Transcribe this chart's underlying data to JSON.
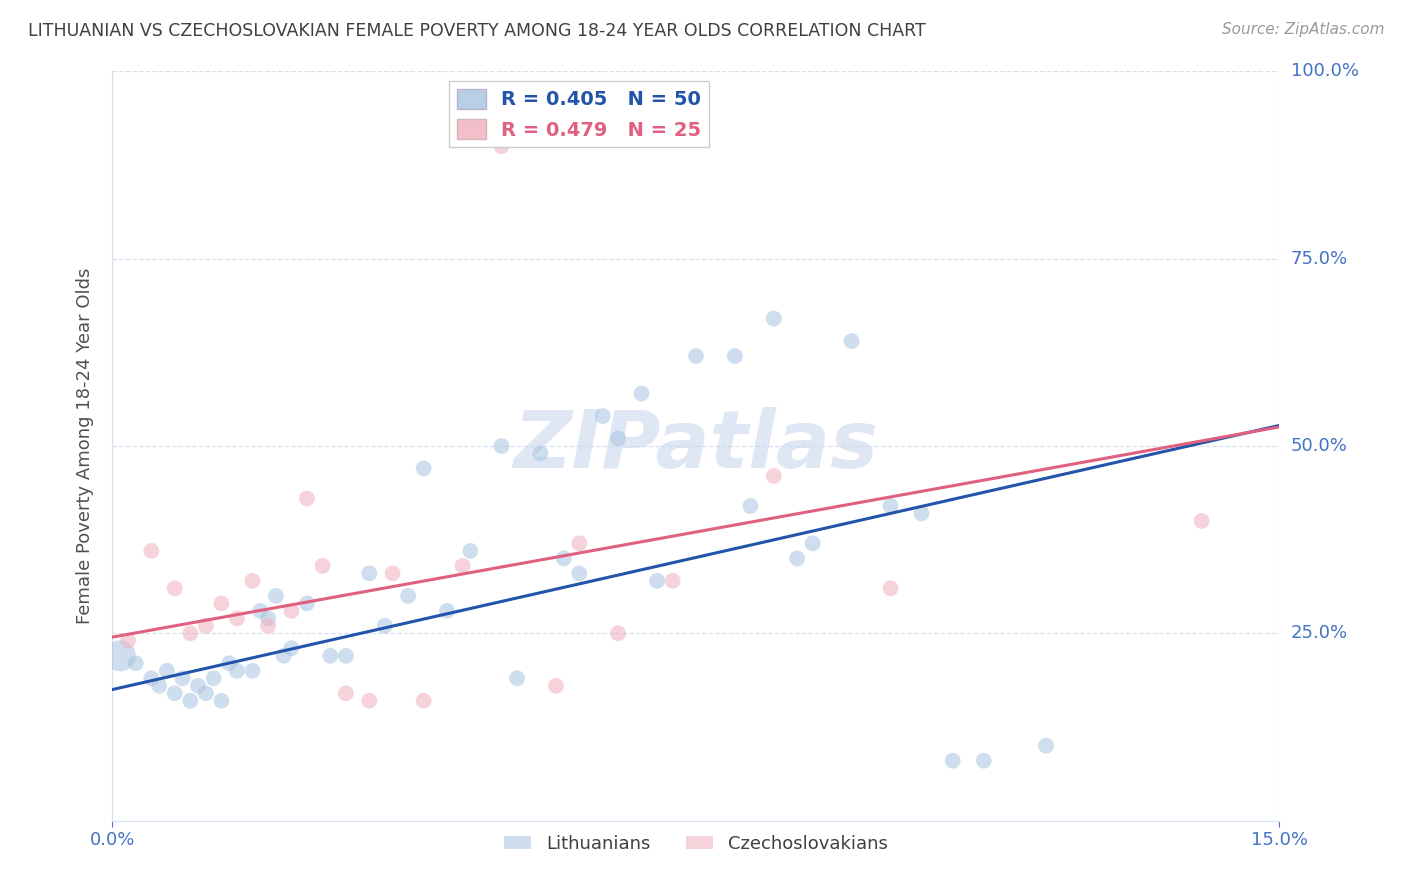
{
  "title": "LITHUANIAN VS CZECHOSLOVAKIAN FEMALE POVERTY AMONG 18-24 YEAR OLDS CORRELATION CHART",
  "source": "Source: ZipAtlas.com",
  "ylabel": "Female Poverty Among 18-24 Year Olds",
  "xlim": [
    0.0,
    0.15
  ],
  "ylim": [
    0.0,
    1.0
  ],
  "xticks": [
    0.0,
    0.15
  ],
  "yticks": [
    0.25,
    0.5,
    0.75,
    1.0
  ],
  "blue_color": "#a8c4e0",
  "pink_color": "#f0b0be",
  "blue_line_color": "#2255aa",
  "pink_line_color": "#e06080",
  "blue_text_color": "#2255aa",
  "pink_text_color": "#e06080",
  "title_color": "#404040",
  "axis_label_color": "#505050",
  "tick_color": "#4472c4",
  "grid_color": "#d8dff0",
  "watermark_color": "#c8d8ec",
  "scatter_alpha": 0.55,
  "scatter_size": 130,
  "first_point_size": 500,
  "trend_linewidth": 2.2,
  "lit_x": [
    0.001,
    0.003,
    0.005,
    0.006,
    0.007,
    0.008,
    0.009,
    0.01,
    0.011,
    0.012,
    0.013,
    0.014,
    0.015,
    0.016,
    0.018,
    0.019,
    0.02,
    0.021,
    0.022,
    0.023,
    0.025,
    0.028,
    0.03,
    0.033,
    0.035,
    0.038,
    0.04,
    0.043,
    0.046,
    0.05,
    0.052,
    0.055,
    0.058,
    0.06,
    0.063,
    0.065,
    0.068,
    0.07,
    0.075,
    0.08,
    0.082,
    0.085,
    0.088,
    0.09,
    0.095,
    0.1,
    0.104,
    0.108,
    0.112,
    0.12
  ],
  "lit_y": [
    0.22,
    0.21,
    0.19,
    0.18,
    0.2,
    0.17,
    0.19,
    0.16,
    0.18,
    0.17,
    0.19,
    0.16,
    0.21,
    0.2,
    0.2,
    0.28,
    0.27,
    0.3,
    0.22,
    0.23,
    0.29,
    0.22,
    0.22,
    0.33,
    0.26,
    0.3,
    0.47,
    0.28,
    0.36,
    0.5,
    0.19,
    0.49,
    0.35,
    0.33,
    0.54,
    0.51,
    0.57,
    0.32,
    0.62,
    0.62,
    0.42,
    0.67,
    0.35,
    0.37,
    0.64,
    0.42,
    0.41,
    0.08,
    0.08,
    0.1
  ],
  "czech_x": [
    0.002,
    0.005,
    0.008,
    0.01,
    0.012,
    0.014,
    0.016,
    0.018,
    0.02,
    0.023,
    0.025,
    0.027,
    0.03,
    0.033,
    0.036,
    0.04,
    0.045,
    0.05,
    0.057,
    0.06,
    0.065,
    0.072,
    0.085,
    0.1,
    0.14
  ],
  "czech_y": [
    0.24,
    0.36,
    0.31,
    0.25,
    0.26,
    0.29,
    0.27,
    0.32,
    0.26,
    0.28,
    0.43,
    0.34,
    0.17,
    0.16,
    0.33,
    0.16,
    0.34,
    0.9,
    0.18,
    0.37,
    0.25,
    0.32,
    0.46,
    0.31,
    0.4
  ],
  "lit_intercept": 0.175,
  "lit_slope": 2.35,
  "czech_intercept": 0.245,
  "czech_slope": 1.87
}
